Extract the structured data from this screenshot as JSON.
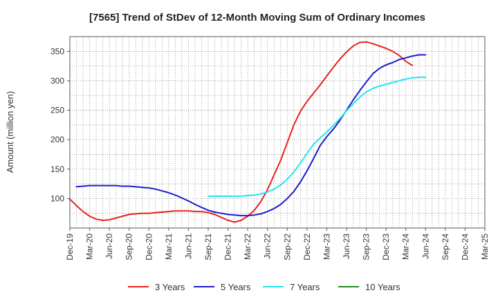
{
  "chart_data": {
    "type": "line",
    "title": "[7565]  Trend of StDev of 12-Month Moving Sum of Ordinary Incomes",
    "ylabel": "Amount (million yen)",
    "xlabel": "",
    "ylim": [
      50,
      375
    ],
    "yticks": [
      100,
      150,
      200,
      250,
      300,
      350
    ],
    "x_ticks": [
      "Dec-19",
      "Mar-20",
      "Jun-20",
      "Sep-20",
      "Dec-20",
      "Mar-21",
      "Jun-21",
      "Sep-21",
      "Dec-21",
      "Mar-22",
      "Jun-22",
      "Sep-22",
      "Dec-22",
      "Mar-23",
      "Jun-23",
      "Sep-23",
      "Dec-23",
      "Mar-24",
      "Jun-24",
      "Sep-24",
      "Dec-24",
      "Mar-25"
    ],
    "grid": true,
    "legend_position": "bottom",
    "series": [
      {
        "name": "3 Years",
        "color": "#e8201e",
        "points": [
          [
            0,
            99
          ],
          [
            1,
            88
          ],
          [
            2,
            78
          ],
          [
            3,
            70
          ],
          [
            4,
            65
          ],
          [
            5,
            63
          ],
          [
            6,
            64
          ],
          [
            7,
            67
          ],
          [
            8,
            70
          ],
          [
            9,
            73
          ],
          [
            10,
            74
          ],
          [
            11,
            75
          ],
          [
            12,
            75
          ],
          [
            13,
            76
          ],
          [
            14,
            77
          ],
          [
            15,
            78
          ],
          [
            16,
            79
          ],
          [
            17,
            79
          ],
          [
            18,
            79
          ],
          [
            19,
            78
          ],
          [
            20,
            78
          ],
          [
            21,
            76
          ],
          [
            22,
            73
          ],
          [
            23,
            68
          ],
          [
            24,
            63
          ],
          [
            25,
            60
          ],
          [
            26,
            63
          ],
          [
            27,
            70
          ],
          [
            28,
            80
          ],
          [
            29,
            95
          ],
          [
            30,
            115
          ],
          [
            31,
            140
          ],
          [
            32,
            165
          ],
          [
            33,
            195
          ],
          [
            34,
            225
          ],
          [
            35,
            248
          ],
          [
            36,
            265
          ],
          [
            37,
            279
          ],
          [
            38,
            293
          ],
          [
            39,
            308
          ],
          [
            40,
            323
          ],
          [
            41,
            337
          ],
          [
            42,
            349
          ],
          [
            43,
            359
          ],
          [
            44,
            365
          ],
          [
            45,
            366
          ],
          [
            46,
            363
          ],
          [
            47,
            359
          ],
          [
            48,
            355
          ],
          [
            49,
            350
          ],
          [
            50,
            343
          ],
          [
            51,
            333
          ],
          [
            52,
            326
          ]
        ]
      },
      {
        "name": "5 Years",
        "color": "#1a1acf",
        "points": [
          [
            1,
            120
          ],
          [
            2,
            121
          ],
          [
            3,
            122
          ],
          [
            4,
            122
          ],
          [
            5,
            122
          ],
          [
            6,
            122
          ],
          [
            7,
            122
          ],
          [
            8,
            121
          ],
          [
            9,
            121
          ],
          [
            10,
            120
          ],
          [
            11,
            119
          ],
          [
            12,
            118
          ],
          [
            13,
            116
          ],
          [
            14,
            113
          ],
          [
            15,
            110
          ],
          [
            16,
            106
          ],
          [
            17,
            101
          ],
          [
            18,
            96
          ],
          [
            19,
            90
          ],
          [
            20,
            85
          ],
          [
            21,
            80
          ],
          [
            22,
            77
          ],
          [
            23,
            75
          ],
          [
            24,
            73
          ],
          [
            25,
            72
          ],
          [
            26,
            71
          ],
          [
            27,
            71
          ],
          [
            28,
            72
          ],
          [
            29,
            74
          ],
          [
            30,
            78
          ],
          [
            31,
            83
          ],
          [
            32,
            90
          ],
          [
            33,
            100
          ],
          [
            34,
            112
          ],
          [
            35,
            128
          ],
          [
            36,
            147
          ],
          [
            37,
            168
          ],
          [
            38,
            190
          ],
          [
            39,
            205
          ],
          [
            40,
            218
          ],
          [
            41,
            233
          ],
          [
            42,
            250
          ],
          [
            43,
            267
          ],
          [
            44,
            283
          ],
          [
            45,
            298
          ],
          [
            46,
            312
          ],
          [
            47,
            321
          ],
          [
            48,
            327
          ],
          [
            49,
            331
          ],
          [
            50,
            336
          ],
          [
            51,
            339
          ],
          [
            52,
            342
          ],
          [
            53,
            344
          ],
          [
            54,
            344
          ]
        ]
      },
      {
        "name": "7 Years",
        "color": "#22e6ef",
        "points": [
          [
            21,
            104
          ],
          [
            22,
            104
          ],
          [
            23,
            104
          ],
          [
            24,
            104
          ],
          [
            25,
            104
          ],
          [
            26,
            104
          ],
          [
            27,
            105
          ],
          [
            28,
            106
          ],
          [
            29,
            108
          ],
          [
            30,
            111
          ],
          [
            31,
            116
          ],
          [
            32,
            123
          ],
          [
            33,
            133
          ],
          [
            34,
            145
          ],
          [
            35,
            160
          ],
          [
            36,
            177
          ],
          [
            37,
            192
          ],
          [
            38,
            203
          ],
          [
            39,
            213
          ],
          [
            40,
            224
          ],
          [
            41,
            236
          ],
          [
            42,
            249
          ],
          [
            43,
            261
          ],
          [
            44,
            272
          ],
          [
            45,
            281
          ],
          [
            46,
            287
          ],
          [
            47,
            291
          ],
          [
            48,
            294
          ],
          [
            49,
            297
          ],
          [
            50,
            300
          ],
          [
            51,
            303
          ],
          [
            52,
            305
          ],
          [
            53,
            306
          ],
          [
            54,
            306
          ]
        ]
      },
      {
        "name": "10 Years",
        "color": "#1f8a1f",
        "points": []
      }
    ]
  }
}
